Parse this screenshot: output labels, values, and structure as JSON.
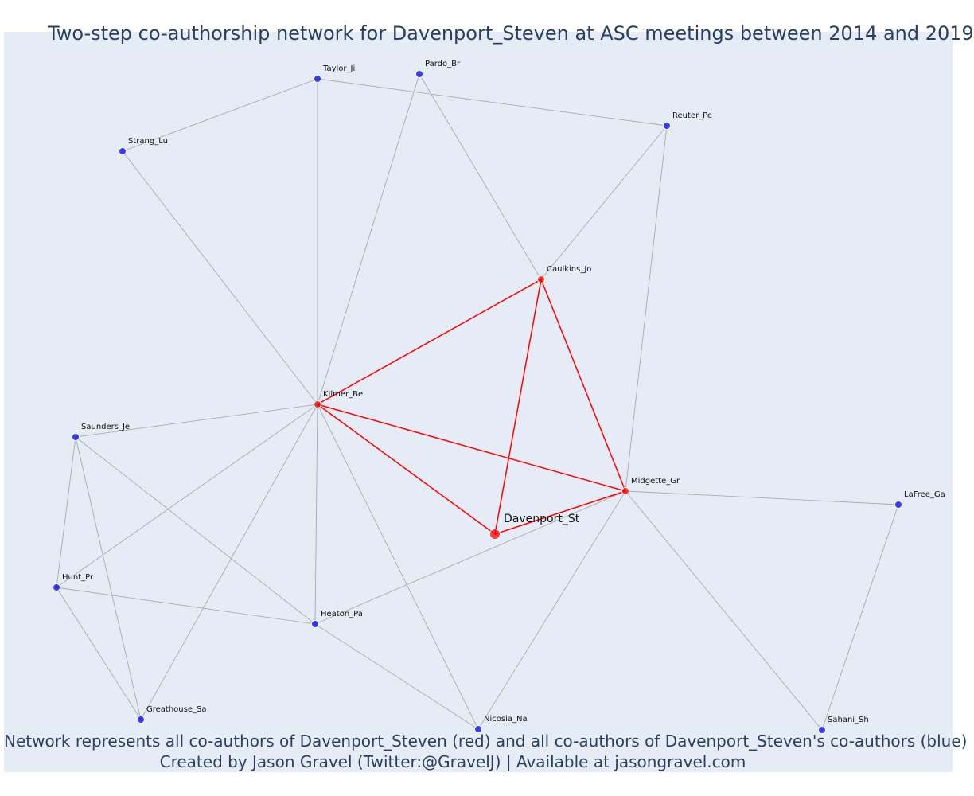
{
  "title": "Two-step co-authorship network for Davenport_Steven at ASC meetings between 2014 and 2019",
  "caption": {
    "line1": "Network represents all co-authors of Davenport_Steven (red) and all co-authors of Davenport_Steven's co-authors (blue)",
    "line2": "Created by Jason Gravel (Twitter:@GravelJ) | Available at jasongravel.com"
  },
  "colors": {
    "background": "#e5ecf6",
    "focal": "#ff0000",
    "coauthor": "#ff0000",
    "second_step": "#0000ff",
    "edge_direct": "#ff0000",
    "edge_indirect": "#aaaaaa"
  },
  "nodes": [
    {
      "id": "Davenport_St",
      "role": "focal"
    },
    {
      "id": "Kilmer_Be",
      "role": "coauthor"
    },
    {
      "id": "Caulkins_Jo",
      "role": "coauthor"
    },
    {
      "id": "Midgette_Gr",
      "role": "coauthor"
    },
    {
      "id": "Taylor_Ji",
      "role": "second_step"
    },
    {
      "id": "Pardo_Br",
      "role": "second_step"
    },
    {
      "id": "Reuter_Pe",
      "role": "second_step"
    },
    {
      "id": "Strang_Lu",
      "role": "second_step"
    },
    {
      "id": "Saunders_Je",
      "role": "second_step"
    },
    {
      "id": "Hunt_Pr",
      "role": "second_step"
    },
    {
      "id": "Heaton_Pa",
      "role": "second_step"
    },
    {
      "id": "Greathouse_Sa",
      "role": "second_step"
    },
    {
      "id": "Nicosia_Na",
      "role": "second_step"
    },
    {
      "id": "LaFree_Ga",
      "role": "second_step"
    },
    {
      "id": "Sahani_Sh",
      "role": "second_step"
    }
  ],
  "edges": [
    {
      "source": "Kilmer_Be",
      "target": "Caulkins_Jo",
      "type": "direct"
    },
    {
      "source": "Kilmer_Be",
      "target": "Midgette_Gr",
      "type": "direct"
    },
    {
      "source": "Kilmer_Be",
      "target": "Davenport_St",
      "type": "direct"
    },
    {
      "source": "Caulkins_Jo",
      "target": "Midgette_Gr",
      "type": "direct"
    },
    {
      "source": "Caulkins_Jo",
      "target": "Davenport_St",
      "type": "direct"
    },
    {
      "source": "Midgette_Gr",
      "target": "Davenport_St",
      "type": "direct"
    },
    {
      "source": "Taylor_Ji",
      "target": "Strang_Lu",
      "type": "indirect"
    },
    {
      "source": "Taylor_Ji",
      "target": "Reuter_Pe",
      "type": "indirect"
    },
    {
      "source": "Taylor_Ji",
      "target": "Kilmer_Be",
      "type": "indirect"
    },
    {
      "source": "Pardo_Br",
      "target": "Kilmer_Be",
      "type": "indirect"
    },
    {
      "source": "Pardo_Br",
      "target": "Caulkins_Jo",
      "type": "indirect"
    },
    {
      "source": "Reuter_Pe",
      "target": "Caulkins_Jo",
      "type": "indirect"
    },
    {
      "source": "Reuter_Pe",
      "target": "Midgette_Gr",
      "type": "indirect"
    },
    {
      "source": "Strang_Lu",
      "target": "Kilmer_Be",
      "type": "indirect"
    },
    {
      "source": "Saunders_Je",
      "target": "Kilmer_Be",
      "type": "indirect"
    },
    {
      "source": "Saunders_Je",
      "target": "Hunt_Pr",
      "type": "indirect"
    },
    {
      "source": "Saunders_Je",
      "target": "Greathouse_Sa",
      "type": "indirect"
    },
    {
      "source": "Saunders_Je",
      "target": "Heaton_Pa",
      "type": "indirect"
    },
    {
      "source": "Hunt_Pr",
      "target": "Kilmer_Be",
      "type": "indirect"
    },
    {
      "source": "Hunt_Pr",
      "target": "Heaton_Pa",
      "type": "indirect"
    },
    {
      "source": "Hunt_Pr",
      "target": "Greathouse_Sa",
      "type": "indirect"
    },
    {
      "source": "Heaton_Pa",
      "target": "Kilmer_Be",
      "type": "indirect"
    },
    {
      "source": "Heaton_Pa",
      "target": "Midgette_Gr",
      "type": "indirect"
    },
    {
      "source": "Heaton_Pa",
      "target": "Nicosia_Na",
      "type": "indirect"
    },
    {
      "source": "Greathouse_Sa",
      "target": "Kilmer_Be",
      "type": "indirect"
    },
    {
      "source": "Nicosia_Na",
      "target": "Kilmer_Be",
      "type": "indirect"
    },
    {
      "source": "Nicosia_Na",
      "target": "Midgette_Gr",
      "type": "indirect"
    },
    {
      "source": "Midgette_Gr",
      "target": "LaFree_Ga",
      "type": "indirect"
    },
    {
      "source": "Midgette_Gr",
      "target": "Sahani_Sh",
      "type": "indirect"
    },
    {
      "source": "LaFree_Ga",
      "target": "Sahani_Sh",
      "type": "indirect"
    }
  ]
}
